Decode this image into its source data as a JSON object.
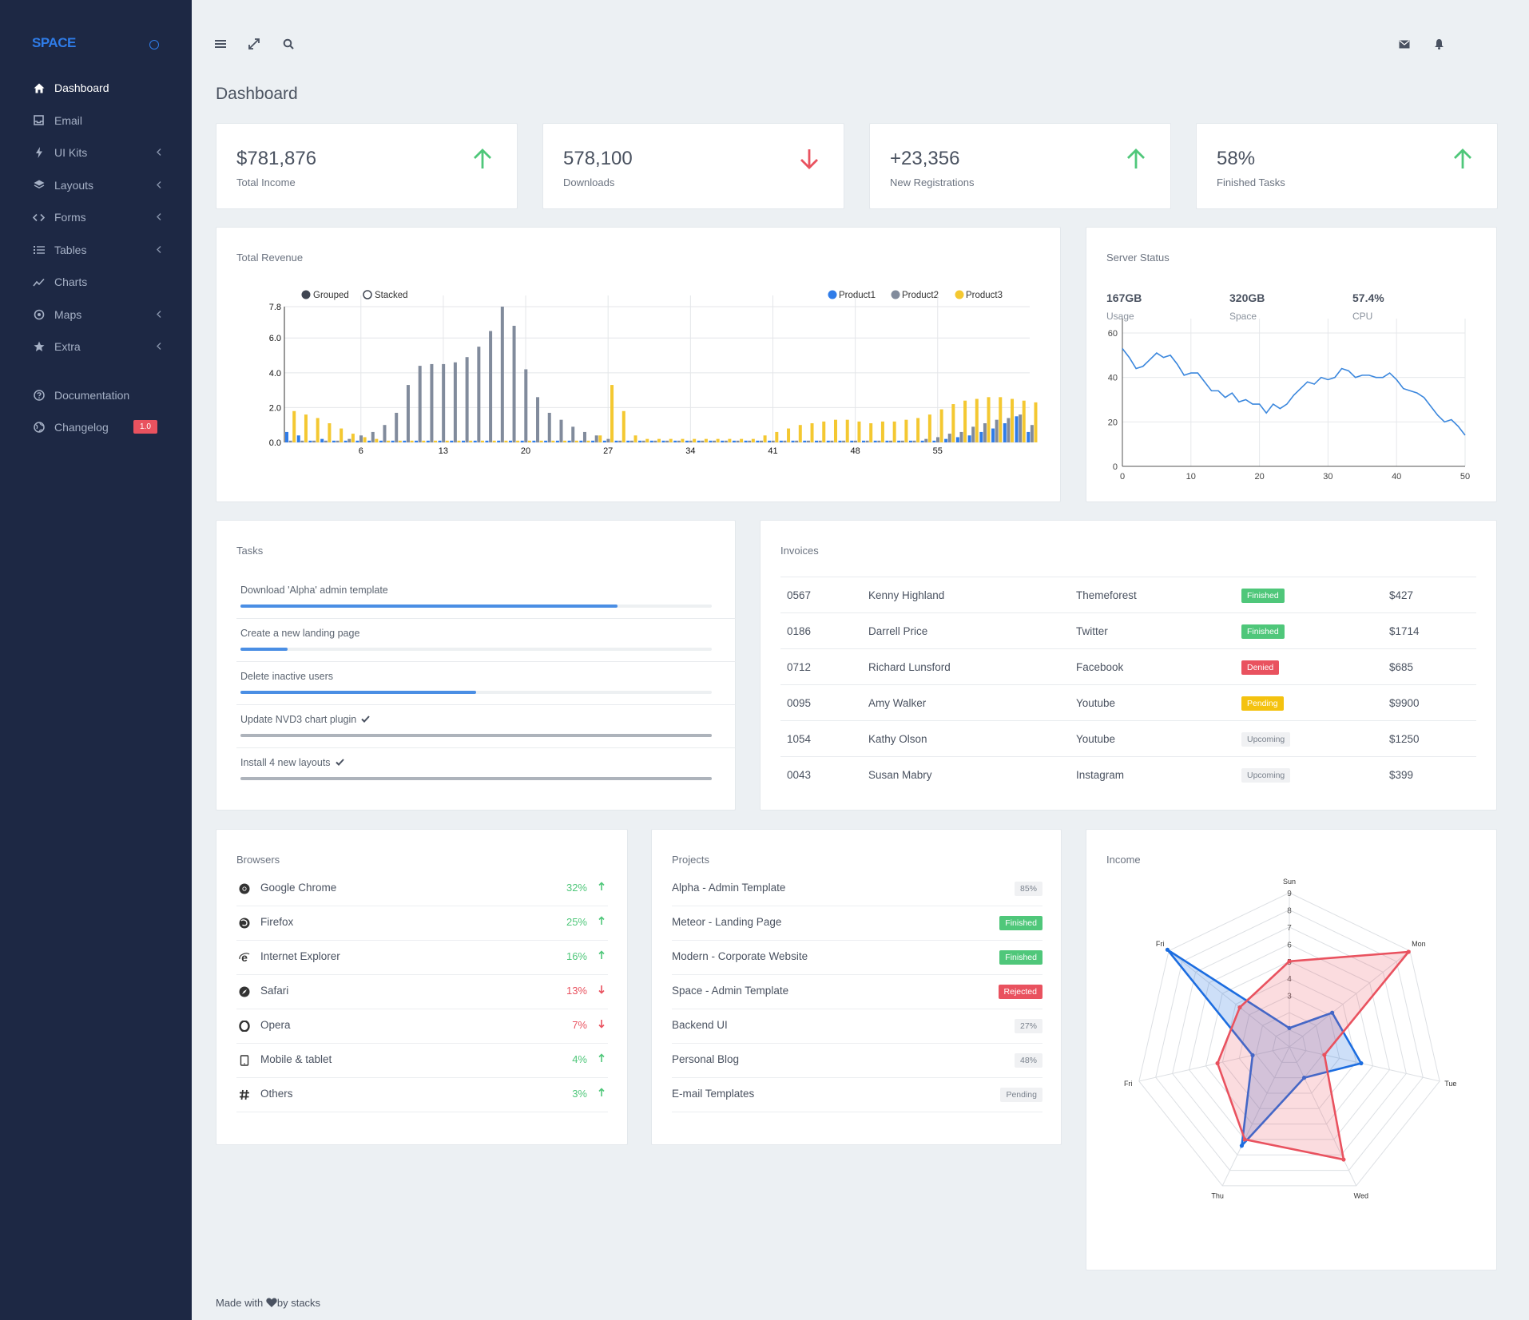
{
  "sidebar": {
    "brand": "SPACE",
    "items": [
      {
        "label": "Dashboard",
        "icon": "home-icon",
        "chevron": false
      },
      {
        "label": "Email",
        "icon": "inbox-icon",
        "chevron": false
      },
      {
        "label": "UI Kits",
        "icon": "bolt-icon",
        "chevron": true
      },
      {
        "label": "Layouts",
        "icon": "layers-icon",
        "chevron": true
      },
      {
        "label": "Forms",
        "icon": "code-icon",
        "chevron": true
      },
      {
        "label": "Tables",
        "icon": "list-icon",
        "chevron": true
      },
      {
        "label": "Charts",
        "icon": "trend-icon",
        "chevron": false
      },
      {
        "label": "Maps",
        "icon": "map-marker-icon",
        "chevron": true
      },
      {
        "label": "Extra",
        "icon": "star-icon",
        "chevron": true
      }
    ],
    "secondary": [
      {
        "label": "Documentation",
        "icon": "help-icon"
      },
      {
        "label": "Changelog",
        "icon": "globe-icon",
        "badge": "1.0"
      }
    ]
  },
  "header": {
    "title": "Dashboard"
  },
  "stats": [
    {
      "value": "$781,876",
      "label": "Total Income",
      "trend": "up"
    },
    {
      "value": "578,100",
      "label": "Downloads",
      "trend": "down"
    },
    {
      "value": "+23,356",
      "label": "New Registrations",
      "trend": "up"
    },
    {
      "value": "58%",
      "label": "Finished Tasks",
      "trend": "up"
    }
  ],
  "colors": {
    "up": "#4fc77a",
    "down": "#e9525f",
    "primary": "#2f7ce8",
    "product1": "#2f7ce8",
    "product2": "#818b9c",
    "product3": "#f4c831",
    "income_a": "#1c6de0",
    "income_b": "#e9525f"
  },
  "revenue": {
    "title": "Total Revenue",
    "toggle": {
      "grouped": "Grouped",
      "stacked": "Stacked"
    },
    "chart_data": {
      "type": "bar",
      "yticks": [
        "0.0",
        "2.0",
        "4.0",
        "6.0",
        "7.8"
      ],
      "ylim": [
        0,
        7.8
      ],
      "xticks": [
        "6",
        "13",
        "20",
        "27",
        "34",
        "41",
        "48",
        "55"
      ],
      "x_start": 0,
      "series": [
        {
          "name": "Product1",
          "values": [
            0.6,
            0.4,
            0.1,
            0.2,
            0.1,
            0.1,
            0.1,
            0.1,
            0.1,
            0.1,
            0.1,
            0.1,
            0.1,
            0.1,
            0.1,
            0.1,
            0.1,
            0.1,
            0.1,
            0.1,
            0.1,
            0.1,
            0.1,
            0.1,
            0.1,
            0.1,
            0.1,
            0.1,
            0.1,
            0.1,
            0.1,
            0.1,
            0.1,
            0.1,
            0.1,
            0.1,
            0.1,
            0.1,
            0.1,
            0.1,
            0.1,
            0.1,
            0.1,
            0.1,
            0.1,
            0.1,
            0.1,
            0.1,
            0.1,
            0.1,
            0.1,
            0.1,
            0.1,
            0.1,
            0.1,
            0.1,
            0.2,
            0.3,
            0.4,
            0.6,
            0.8,
            1.1,
            1.5,
            0.6
          ]
        },
        {
          "name": "Product2",
          "values": [
            0.1,
            0.1,
            0.1,
            0.1,
            0.1,
            0.2,
            0.4,
            0.6,
            1.0,
            1.7,
            3.3,
            4.4,
            4.5,
            4.5,
            4.6,
            4.9,
            5.5,
            6.4,
            7.8,
            6.7,
            4.2,
            2.6,
            1.7,
            1.3,
            0.9,
            0.6,
            0.4,
            0.2,
            0.1,
            0.1,
            0.1,
            0.1,
            0.1,
            0.1,
            0.1,
            0.1,
            0.1,
            0.1,
            0.1,
            0.1,
            0.1,
            0.1,
            0.1,
            0.1,
            0.1,
            0.1,
            0.1,
            0.1,
            0.1,
            0.1,
            0.1,
            0.1,
            0.1,
            0.1,
            0.2,
            0.3,
            0.5,
            0.6,
            0.9,
            1.1,
            1.3,
            1.4,
            1.6,
            1.0
          ]
        },
        {
          "name": "Product3",
          "values": [
            1.8,
            1.6,
            1.4,
            1.1,
            0.8,
            0.5,
            0.3,
            0.2,
            0.1,
            0.1,
            0.1,
            0.1,
            0.1,
            0.1,
            0.1,
            0.1,
            0.1,
            0.1,
            0.1,
            0.1,
            0.1,
            0.1,
            0.1,
            0.1,
            0.1,
            0.1,
            0.4,
            3.3,
            1.8,
            0.4,
            0.2,
            0.2,
            0.2,
            0.2,
            0.2,
            0.2,
            0.2,
            0.2,
            0.2,
            0.2,
            0.4,
            0.6,
            0.8,
            1.0,
            1.1,
            1.2,
            1.3,
            1.3,
            1.2,
            1.1,
            1.2,
            1.2,
            1.3,
            1.4,
            1.6,
            1.9,
            2.2,
            2.4,
            2.5,
            2.6,
            2.6,
            2.5,
            2.4,
            2.3
          ]
        }
      ]
    }
  },
  "server": {
    "title": "Server Status",
    "metrics": [
      {
        "value": "167GB",
        "label": "Usage"
      },
      {
        "value": "320GB",
        "label": "Space"
      },
      {
        "value": "57.4%",
        "label": "CPU"
      }
    ],
    "chart_data": {
      "type": "line",
      "xticks": [
        "0",
        "10",
        "20",
        "30",
        "40",
        "50"
      ],
      "yticks": [
        "0",
        "20",
        "40",
        "60"
      ],
      "xlim": [
        0,
        50
      ],
      "ylim": [
        0,
        60
      ],
      "x": [
        0,
        1,
        2,
        3,
        4,
        5,
        6,
        7,
        8,
        9,
        10,
        11,
        12,
        13,
        14,
        15,
        16,
        17,
        18,
        19,
        20,
        21,
        22,
        23,
        24,
        25,
        26,
        27,
        28,
        29,
        30,
        31,
        32,
        33,
        34,
        35,
        36,
        37,
        38,
        39,
        40,
        41,
        42,
        43,
        44,
        45,
        46,
        47,
        48,
        49,
        50
      ],
      "values": [
        53,
        49,
        44,
        45,
        48,
        51,
        49,
        50,
        46,
        41,
        42,
        42,
        38,
        34,
        34,
        31,
        33,
        29,
        30,
        28,
        28,
        24,
        28,
        26,
        28,
        32,
        35,
        38,
        37,
        40,
        39,
        40,
        44,
        43,
        40,
        41,
        41,
        40,
        40,
        42,
        39,
        35,
        34,
        33,
        31,
        27,
        23,
        20,
        21,
        18,
        14
      ]
    }
  },
  "tasks": {
    "title": "Tasks",
    "items": [
      {
        "label": "Download 'Alpha' admin template",
        "progress": 0.8,
        "done": false
      },
      {
        "label": "Create a new landing page",
        "progress": 0.1,
        "done": false
      },
      {
        "label": "Delete inactive users",
        "progress": 0.5,
        "done": false
      },
      {
        "label": "Update NVD3 chart plugin",
        "progress": 1.0,
        "done": true
      },
      {
        "label": "Install 4 new layouts",
        "progress": 1.0,
        "done": true
      }
    ]
  },
  "invoices": {
    "title": "Invoices",
    "rows": [
      {
        "id": "0567",
        "name": "Kenny Highland",
        "source": "Themeforest",
        "status": "Finished",
        "amount": "$427"
      },
      {
        "id": "0186",
        "name": "Darrell Price",
        "source": "Twitter",
        "status": "Finished",
        "amount": "$1714"
      },
      {
        "id": "0712",
        "name": "Richard Lunsford",
        "source": "Facebook",
        "status": "Denied",
        "amount": "$685"
      },
      {
        "id": "0095",
        "name": "Amy Walker",
        "source": "Youtube",
        "status": "Pending",
        "amount": "$9900"
      },
      {
        "id": "1054",
        "name": "Kathy Olson",
        "source": "Youtube",
        "status": "Upcoming",
        "amount": "$1250"
      },
      {
        "id": "0043",
        "name": "Susan Mabry",
        "source": "Instagram",
        "status": "Upcoming",
        "amount": "$399"
      }
    ]
  },
  "browsers": {
    "title": "Browsers",
    "items": [
      {
        "name": "Google Chrome",
        "pct": "32%",
        "trend": "up",
        "icon": "chrome-icon"
      },
      {
        "name": "Firefox",
        "pct": "25%",
        "trend": "up",
        "icon": "firefox-icon"
      },
      {
        "name": "Internet Explorer",
        "pct": "16%",
        "trend": "up",
        "icon": "ie-icon"
      },
      {
        "name": "Safari",
        "pct": "13%",
        "trend": "down",
        "icon": "safari-icon"
      },
      {
        "name": "Opera",
        "pct": "7%",
        "trend": "down",
        "icon": "opera-icon"
      },
      {
        "name": "Mobile & tablet",
        "pct": "4%",
        "trend": "up",
        "icon": "tablet-icon"
      },
      {
        "name": "Others",
        "pct": "3%",
        "trend": "up",
        "icon": "hash-icon"
      }
    ]
  },
  "projects": {
    "title": "Projects",
    "items": [
      {
        "name": "Alpha - Admin Template",
        "badge": "85%",
        "kind": "num"
      },
      {
        "name": "Meteor - Landing Page",
        "badge": "Finished",
        "kind": "fin"
      },
      {
        "name": "Modern - Corporate Website",
        "badge": "Finished",
        "kind": "fin"
      },
      {
        "name": "Space - Admin Template",
        "badge": "Rejected",
        "kind": "rej"
      },
      {
        "name": "Backend UI",
        "badge": "27%",
        "kind": "num"
      },
      {
        "name": "Personal Blog",
        "badge": "48%",
        "kind": "num"
      },
      {
        "name": "E-mail Templates",
        "badge": "Pending",
        "kind": "up"
      }
    ]
  },
  "income": {
    "title": "Income",
    "chart_data": {
      "type": "radar",
      "axes": [
        "Sun",
        "Mon",
        "Tue",
        "Wed",
        "Thu",
        "Fri",
        "Fri"
      ],
      "rticks": [
        "3",
        "4",
        "5",
        "6",
        "7",
        "8",
        "9"
      ],
      "rlim": [
        0,
        9
      ],
      "series": [
        {
          "values": [
            1.1,
            3.2,
            4.3,
            2.0,
            6.4,
            2.2,
            9.1
          ]
        },
        {
          "values": [
            5.0,
            8.9,
            2.1,
            7.3,
            6.0,
            4.3,
            3.7
          ]
        }
      ]
    }
  },
  "footer": {
    "before": "Made with",
    "after": "by stacks"
  }
}
